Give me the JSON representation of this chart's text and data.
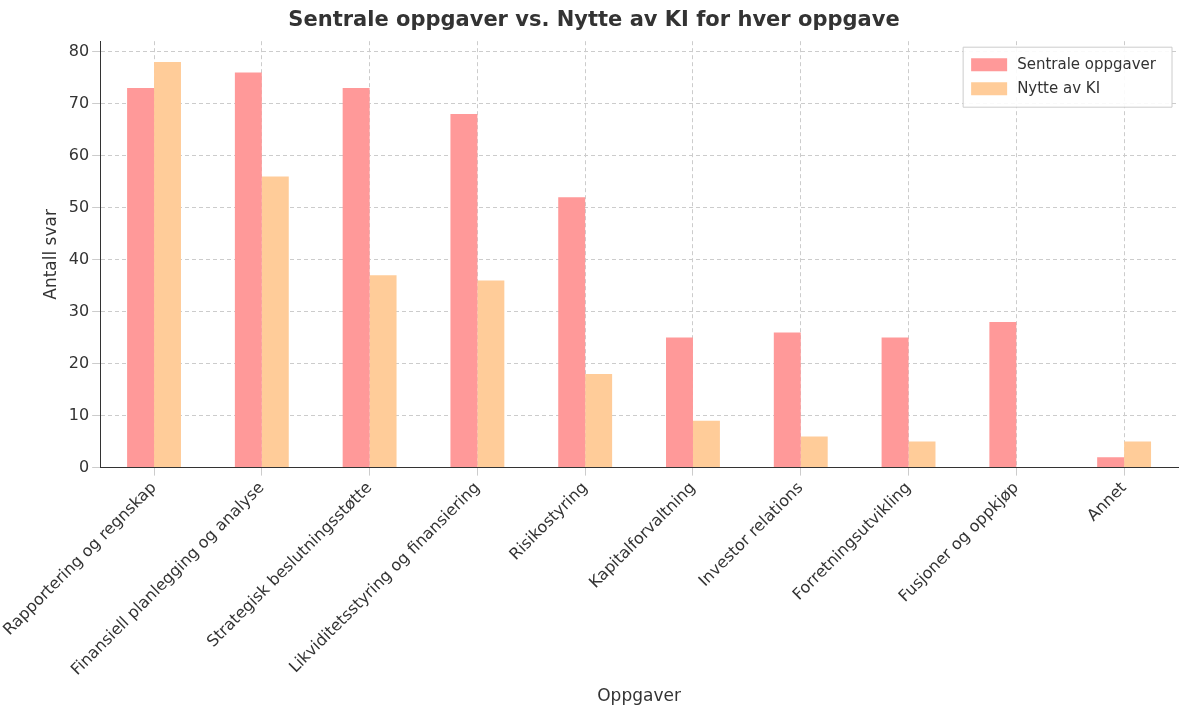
{
  "chart_data": {
    "type": "bar",
    "title": "Sentrale oppgaver vs. Nytte av KI for hver oppgave",
    "xlabel": "Oppgaver",
    "ylabel": "Antall svar",
    "categories": [
      "Rapportering og regnskap",
      "Finansiell planlegging og analyse",
      "Strategisk beslutningsstøtte",
      "Likviditetsstyring og finansiering",
      "Risikostyring",
      "Kapitalforvaltning",
      "Investor relations",
      "Forretningsutvikling",
      "Fusjoner og oppkjøp",
      "Annet"
    ],
    "series": [
      {
        "name": "Sentrale oppgaver",
        "color": "#ff9999",
        "values": [
          73,
          76,
          73,
          68,
          52,
          25,
          26,
          25,
          28,
          2
        ]
      },
      {
        "name": "Nytte av KI",
        "color": "#ffcc99",
        "values": [
          78,
          56,
          37,
          36,
          18,
          9,
          6,
          5,
          0,
          5
        ]
      }
    ],
    "ylim": [
      0,
      82
    ],
    "yticks": [
      0,
      10,
      20,
      30,
      40,
      50,
      60,
      70,
      80
    ],
    "grid": true,
    "legend": "top right"
  }
}
